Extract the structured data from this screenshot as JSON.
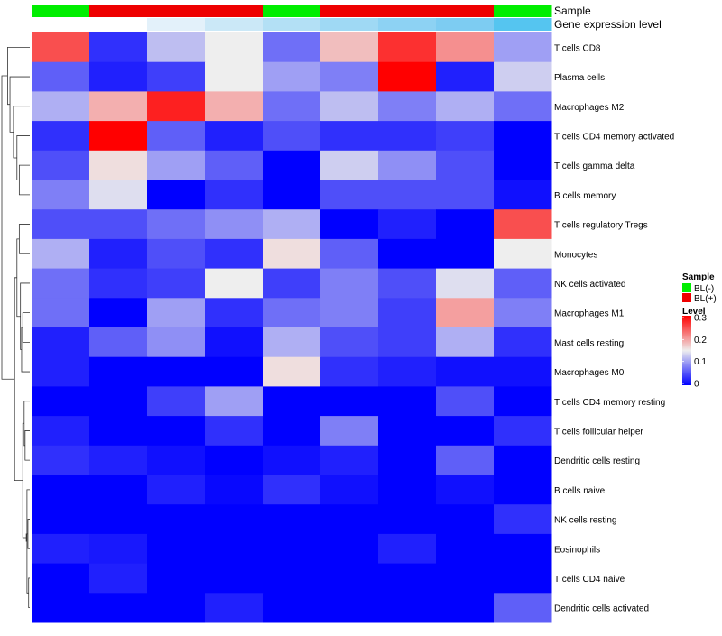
{
  "chart_data": {
    "type": "heatmap",
    "annotations": {
      "sample": {
        "title": "Sample",
        "values": [
          "BL(-)",
          "BL(+)",
          "BL(+)",
          "BL(+)",
          "BL(-)",
          "BL(+)",
          "BL(+)",
          "BL(+)",
          "BL(-)"
        ],
        "legend": [
          {
            "label": "BL(-)",
            "color": "#00ee00"
          },
          {
            "label": "BL(+)",
            "color": "#ee0000"
          }
        ]
      },
      "gene_expression_level": {
        "title": "Gene expression level",
        "colors": [
          "#ffffff",
          "#ffffff",
          "#e3f1fa",
          "#cbe8f7",
          "#b3e0f5",
          "#9fd9f4",
          "#8dd2f3",
          "#7dccf2",
          "#55c5f0"
        ]
      }
    },
    "rows": [
      "T cells CD8",
      "Plasma cells",
      "Macrophages M2",
      "T cells CD4 memory activated",
      "T cells gamma delta",
      "B cells memory",
      "T cells regulatory  Tregs",
      "Monocytes",
      "NK cells activated",
      "Macrophages M1",
      "Mast cells resting",
      "Macrophages M0",
      "T cells CD4 memory resting",
      "T cells follicular helper",
      "Dendritic cells resting",
      "B cells naive",
      "NK cells resting",
      "Eosinophils",
      "T cells CD4 naive",
      "Dendritic cells activated"
    ],
    "values": [
      [
        0.25,
        0.03,
        0.12,
        0.15,
        0.07,
        0.18,
        0.27,
        0.21,
        0.1
      ],
      [
        0.06,
        0.02,
        0.04,
        0.15,
        0.1,
        0.08,
        0.3,
        0.02,
        0.13
      ],
      [
        0.11,
        0.19,
        0.28,
        0.19,
        0.07,
        0.12,
        0.08,
        0.11,
        0.07
      ],
      [
        0.03,
        0.3,
        0.06,
        0.02,
        0.05,
        0.03,
        0.03,
        0.04,
        0.0
      ],
      [
        0.05,
        0.16,
        0.1,
        0.06,
        0.0,
        0.13,
        0.09,
        0.05,
        0.0
      ],
      [
        0.08,
        0.14,
        0.0,
        0.03,
        0.0,
        0.05,
        0.05,
        0.05,
        0.01
      ],
      [
        0.05,
        0.05,
        0.07,
        0.09,
        0.11,
        0.0,
        0.02,
        0.0,
        0.25
      ],
      [
        0.11,
        0.02,
        0.05,
        0.03,
        0.16,
        0.06,
        0.0,
        0.0,
        0.15
      ],
      [
        0.07,
        0.03,
        0.04,
        0.15,
        0.04,
        0.08,
        0.05,
        0.14,
        0.06
      ],
      [
        0.07,
        0.0,
        0.1,
        0.03,
        0.07,
        0.08,
        0.04,
        0.2,
        0.08
      ],
      [
        0.02,
        0.06,
        0.09,
        0.01,
        0.11,
        0.05,
        0.04,
        0.11,
        0.03
      ],
      [
        0.02,
        0.0,
        0.0,
        0.0,
        0.16,
        0.03,
        0.02,
        0.01,
        0.01
      ],
      [
        0.0,
        0.0,
        0.04,
        0.1,
        0.0,
        0.0,
        0.0,
        0.05,
        0.0
      ],
      [
        0.02,
        0.0,
        0.0,
        0.03,
        0.0,
        0.08,
        0.0,
        0.0,
        0.03
      ],
      [
        0.03,
        0.02,
        0.01,
        0.0,
        0.01,
        0.02,
        0.0,
        0.06,
        0.0
      ],
      [
        0.0,
        0.0,
        0.02,
        0.005,
        0.03,
        0.01,
        0.0,
        0.01,
        0.0
      ],
      [
        0.0,
        0.0,
        0.0,
        0.0,
        0.0,
        0.0,
        0.0,
        0.0,
        0.03
      ],
      [
        0.02,
        0.015,
        0.0,
        0.0,
        0.0,
        0.0,
        0.02,
        0.0,
        0.0
      ],
      [
        0.0,
        0.02,
        0.0,
        0.0,
        0.0,
        0.0,
        0.0,
        0.0,
        0.0
      ],
      [
        0.0,
        0.0,
        0.0,
        0.02,
        0.0,
        0.0,
        0.0,
        0.0,
        0.06
      ]
    ],
    "dendrogram": {
      "merges": [
        [
          -19,
          -20,
          0.05
        ],
        [
          -17,
          -18,
          0.08
        ],
        [
          -16,
          1,
          0.12
        ],
        [
          2,
          3,
          0.15
        ],
        [
          -14,
          -15,
          0.2
        ],
        [
          -13,
          5,
          0.24
        ],
        [
          4,
          6,
          0.3
        ],
        [
          -10,
          -11,
          0.3
        ],
        [
          -12,
          8,
          0.35
        ],
        [
          -9,
          9,
          0.4
        ],
        [
          -7,
          -8,
          0.45
        ],
        [
          10,
          11,
          0.55
        ],
        [
          7,
          12,
          0.65
        ],
        [
          -5,
          -6,
          0.45
        ],
        [
          -4,
          14,
          0.55
        ],
        [
          -3,
          15,
          0.7
        ],
        [
          -2,
          16,
          0.85
        ],
        [
          -1,
          17,
          0.95
        ],
        [
          13,
          18,
          1.2
        ]
      ]
    },
    "color_legend": {
      "title": "Level",
      "min": 0,
      "max": 0.3,
      "mid": 0.15,
      "ticks": [
        0,
        0.1,
        0.2,
        0.3
      ],
      "tick_labels": [
        "0",
        "0.1",
        "0.2",
        "0.3"
      ],
      "low_color": "#0000ff",
      "mid_color": "#eeeeee",
      "high_color": "#ff0000"
    }
  }
}
